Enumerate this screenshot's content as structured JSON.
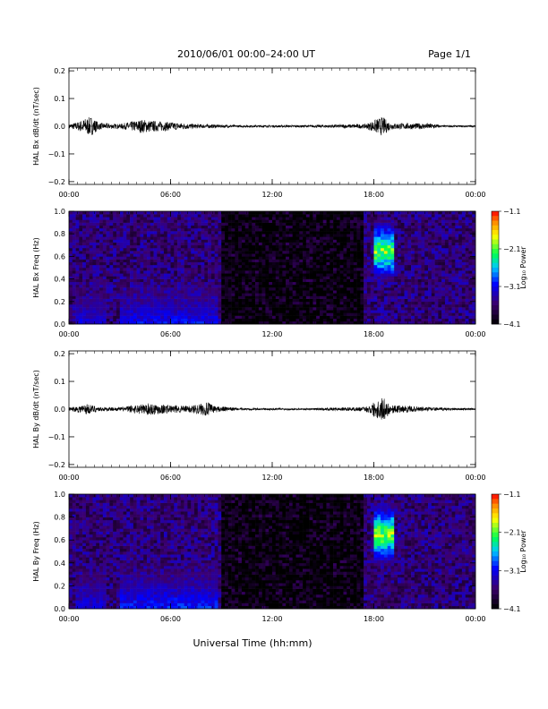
{
  "header": {
    "title": "2010/06/01  00:00–24:00 UT",
    "page": "Page 1/1"
  },
  "footer": {
    "xlabel": "Universal Time (hh:mm)"
  },
  "colors": {
    "trace": "#000000",
    "spectrogram_low": "#000000",
    "spectrogram_mid": "#0000ff",
    "spectrogram_high": "#ff0000"
  },
  "chart_data": [
    {
      "type": "line",
      "ylabel": "HAL Bx dB/dt (nT/sec)",
      "xlim": [
        0,
        24
      ],
      "ylim": [
        -0.21,
        0.21
      ],
      "xticks": [
        "00:00",
        "06:00",
        "12:00",
        "18:00",
        "00:00"
      ],
      "yticks": [
        -0.2,
        -0.1,
        0.0,
        0.1,
        0.2
      ],
      "yticklabels": [
        "−0.2",
        "−0.1",
        "0.0",
        "0.1",
        "0.2"
      ],
      "envelope": [
        {
          "t": 0.0,
          "a": 0.008
        },
        {
          "t": 0.5,
          "a": 0.015
        },
        {
          "t": 1.0,
          "a": 0.03
        },
        {
          "t": 1.3,
          "a": 0.035
        },
        {
          "t": 1.8,
          "a": 0.012
        },
        {
          "t": 3.0,
          "a": 0.008
        },
        {
          "t": 4.3,
          "a": 0.025
        },
        {
          "t": 5.0,
          "a": 0.02
        },
        {
          "t": 6.0,
          "a": 0.015
        },
        {
          "t": 7.5,
          "a": 0.008
        },
        {
          "t": 8.7,
          "a": 0.006
        },
        {
          "t": 10.0,
          "a": 0.004
        },
        {
          "t": 14.0,
          "a": 0.004
        },
        {
          "t": 17.5,
          "a": 0.008
        },
        {
          "t": 18.5,
          "a": 0.035
        },
        {
          "t": 19.0,
          "a": 0.012
        },
        {
          "t": 21.5,
          "a": 0.01
        },
        {
          "t": 22.0,
          "a": 0.003
        },
        {
          "t": 24.0,
          "a": 0.003
        }
      ]
    },
    {
      "type": "heatmap",
      "ylabel": "HAL Bx Freq (Hz)",
      "xlim": [
        0,
        24
      ],
      "ylim": [
        0,
        1.0
      ],
      "xticks": [
        "00:00",
        "06:00",
        "12:00",
        "18:00",
        "00:00"
      ],
      "yticks": [
        0.0,
        0.2,
        0.4,
        0.6,
        0.8,
        1.0
      ],
      "yticklabels": [
        "0.0",
        "0.2",
        "0.4",
        "0.6",
        "0.8",
        "1.0"
      ],
      "colorbar": {
        "label": "Log₁₀ Power",
        "range": [
          -4.1,
          -1.1
        ],
        "ticks": [
          "−1.1",
          "−2.1",
          "−3.1",
          "−4.1"
        ]
      },
      "events": [
        {
          "t0": 0.4,
          "t1": 2.2,
          "level": -3.0
        },
        {
          "t0": 3.0,
          "t1": 8.7,
          "level": -2.9
        },
        {
          "t0": 18.0,
          "t1": 19.2,
          "level": -1.6,
          "f0": 0.3,
          "f1": 1.0
        }
      ]
    },
    {
      "type": "line",
      "ylabel": "HAL By dB/dt (nT/sec)",
      "xlim": [
        0,
        24
      ],
      "ylim": [
        -0.21,
        0.21
      ],
      "xticks": [
        "00:00",
        "06:00",
        "12:00",
        "18:00",
        "00:00"
      ],
      "yticks": [
        -0.2,
        -0.1,
        0.0,
        0.1,
        0.2
      ],
      "yticklabels": [
        "−0.2",
        "−0.1",
        "0.0",
        "0.1",
        "0.2"
      ],
      "envelope": [
        {
          "t": 0.0,
          "a": 0.006
        },
        {
          "t": 0.5,
          "a": 0.012
        },
        {
          "t": 1.0,
          "a": 0.02
        },
        {
          "t": 1.8,
          "a": 0.008
        },
        {
          "t": 3.0,
          "a": 0.006
        },
        {
          "t": 3.8,
          "a": 0.015
        },
        {
          "t": 4.8,
          "a": 0.022
        },
        {
          "t": 6.0,
          "a": 0.015
        },
        {
          "t": 7.0,
          "a": 0.012
        },
        {
          "t": 8.2,
          "a": 0.025
        },
        {
          "t": 8.6,
          "a": 0.012
        },
        {
          "t": 10.0,
          "a": 0.004
        },
        {
          "t": 14.0,
          "a": 0.003
        },
        {
          "t": 17.5,
          "a": 0.008
        },
        {
          "t": 18.5,
          "a": 0.045
        },
        {
          "t": 19.0,
          "a": 0.015
        },
        {
          "t": 21.5,
          "a": 0.006
        },
        {
          "t": 24.0,
          "a": 0.003
        }
      ]
    },
    {
      "type": "heatmap",
      "ylabel": "HAL By Freq (Hz)",
      "xlim": [
        0,
        24
      ],
      "ylim": [
        0,
        1.0
      ],
      "xticks": [
        "00:00",
        "06:00",
        "12:00",
        "18:00",
        "00:00"
      ],
      "yticks": [
        0.0,
        0.2,
        0.4,
        0.6,
        0.8,
        1.0
      ],
      "yticklabels": [
        "0.0",
        "0.2",
        "0.4",
        "0.6",
        "0.8",
        "1.0"
      ],
      "colorbar": {
        "label": "Log₁₀ Power",
        "range": [
          -4.1,
          -1.1
        ],
        "ticks": [
          "−1.1",
          "−2.1",
          "−3.1",
          "−4.1"
        ]
      },
      "events": [
        {
          "t0": 0.4,
          "t1": 2.2,
          "level": -3.0
        },
        {
          "t0": 3.0,
          "t1": 8.7,
          "level": -2.8
        },
        {
          "t0": 18.0,
          "t1": 19.2,
          "level": -1.6,
          "f0": 0.3,
          "f1": 1.0
        }
      ]
    }
  ]
}
